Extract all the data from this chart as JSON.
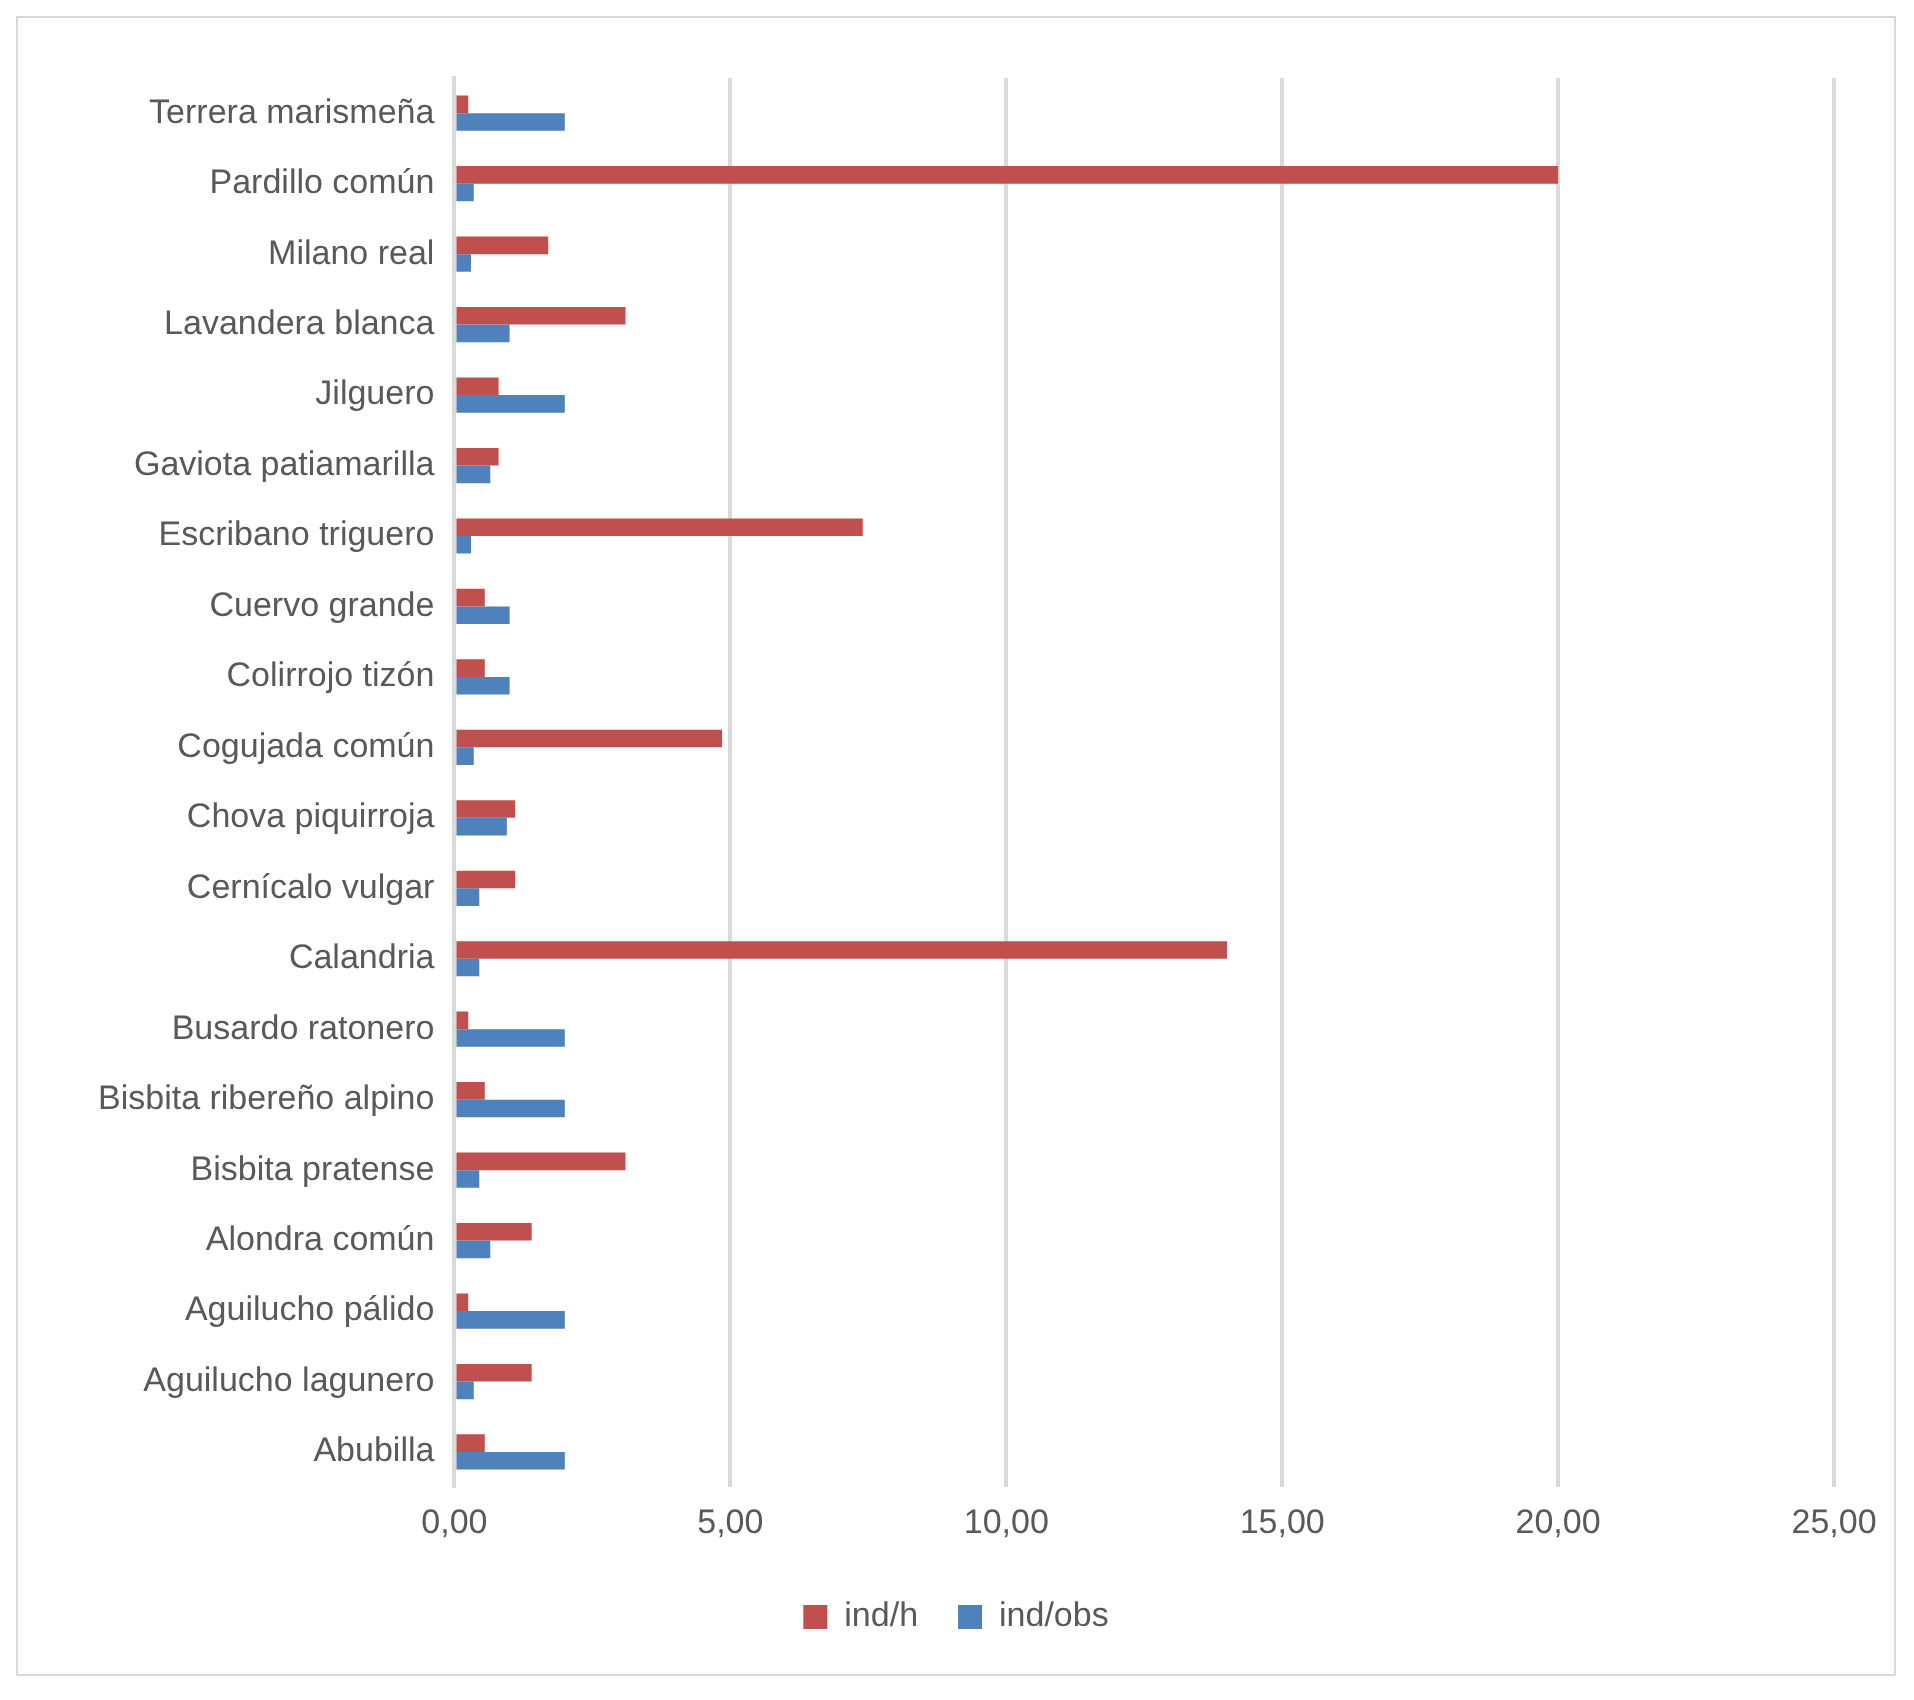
{
  "chart_data": {
    "type": "bar",
    "orientation": "horizontal",
    "categories": [
      "Terrera marismeña",
      "Pardillo común",
      "Milano real",
      "Lavandera blanca",
      "Jilguero",
      "Gaviota patiamarilla",
      "Escribano triguero",
      "Cuervo grande",
      "Colirrojo tizón",
      "Cogujada común",
      "Chova piquirroja",
      "Cernícalo vulgar",
      "Calandria",
      "Busardo ratonero",
      "Bisbita ribereño alpino",
      "Bisbita pratense",
      "Alondra común",
      "Aguilucho pálido",
      "Aguilucho lagunero",
      "Abubilla"
    ],
    "series": [
      {
        "name": "ind/h",
        "color": "#c0504d",
        "values": [
          0.25,
          20,
          1.7,
          3.1,
          0.8,
          0.8,
          7.4,
          0.55,
          0.55,
          4.85,
          1.1,
          1.1,
          14,
          0.25,
          0.55,
          3.1,
          1.4,
          0.25,
          1.4,
          0.55
        ]
      },
      {
        "name": "ind/obs",
        "color": "#4f81bd",
        "values": [
          2,
          0.35,
          0.3,
          1,
          2,
          0.65,
          0.3,
          1,
          1,
          0.35,
          0.95,
          0.45,
          0.45,
          2,
          2,
          0.45,
          0.65,
          2,
          0.35,
          2
        ]
      }
    ],
    "xlim": [
      0,
      25
    ],
    "xticks": [
      {
        "value": 0,
        "label": "0,00"
      },
      {
        "value": 5,
        "label": "5,00"
      },
      {
        "value": 10,
        "label": "10,00"
      },
      {
        "value": 15,
        "label": "15,00"
      },
      {
        "value": 20,
        "label": "20,00"
      },
      {
        "value": 25,
        "label": "25,00"
      }
    ],
    "grid": "x",
    "legend": "bottom"
  }
}
